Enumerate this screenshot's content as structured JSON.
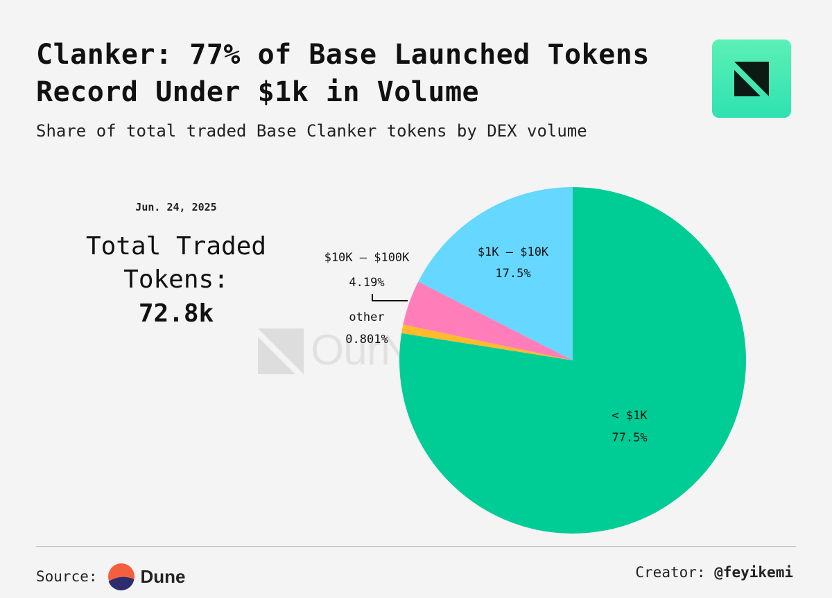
{
  "header": {
    "title_brand": "Clanker:",
    "title_rest": " 77% of Base Launched Tokens Record Under $1k in Volume",
    "subtitle": "Share of total traded Base Clanker tokens by DEX volume"
  },
  "logo_icon": "ournetwork-logo-icon",
  "stat": {
    "date": "Jun. 24, 2025",
    "label": "Total Traded Tokens:",
    "value": "72.8k"
  },
  "watermark": "OurNetwork",
  "footer": {
    "source_label": "Source:",
    "source_name": "Dune",
    "creator_label": "Creator:",
    "creator_handle": "@feyikemi"
  },
  "chart_data": {
    "type": "pie",
    "start": "12 o'clock, clockwise",
    "slices": [
      {
        "label": "< $1K",
        "percent_label": "77.5%",
        "value": 77.5,
        "color": "#00cd95"
      },
      {
        "label": "other",
        "percent_label": "0.801%",
        "value": 0.801,
        "color": "#ffba2e"
      },
      {
        "label": "$10K – $100K",
        "percent_label": "4.19%",
        "value": 4.19,
        "color": "#ff7eb9"
      },
      {
        "label": "$1K – $10K",
        "percent_label": "17.5%",
        "value": 17.5,
        "color": "#66d7ff"
      }
    ]
  }
}
